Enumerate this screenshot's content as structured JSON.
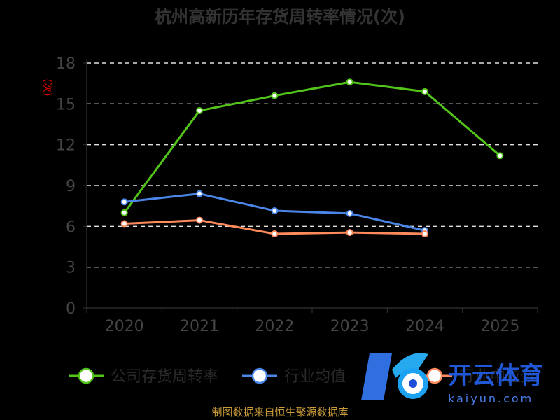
{
  "chart_data": {
    "type": "line",
    "title": "杭州高新历年存货周转率情况(次)",
    "ylabel": "(次)",
    "categories": [
      "2020",
      "2021",
      "2022",
      "2023",
      "2024",
      "2025"
    ],
    "ylim": [
      0,
      18
    ],
    "yticks": [
      0,
      3,
      6,
      9,
      12,
      15,
      18
    ],
    "grid": true,
    "legend_position": "bottom",
    "series": [
      {
        "name": "公司存货周转率",
        "color": "#52c41a",
        "values": [
          7.0,
          14.5,
          15.6,
          16.6,
          15.9,
          11.2
        ]
      },
      {
        "name": "行业均值",
        "color": "#4a86e8",
        "values": [
          7.8,
          8.4,
          7.15,
          6.95,
          5.7,
          null
        ]
      },
      {
        "name": "行业中位数",
        "color": "#ff8a5c",
        "values": [
          6.2,
          6.45,
          5.45,
          5.55,
          5.45,
          null
        ]
      }
    ]
  },
  "footer": {
    "source": "制图数据来自恒生聚源数据库"
  },
  "watermark": {
    "brand": "开云体育",
    "domain": "kaiyun.com"
  }
}
